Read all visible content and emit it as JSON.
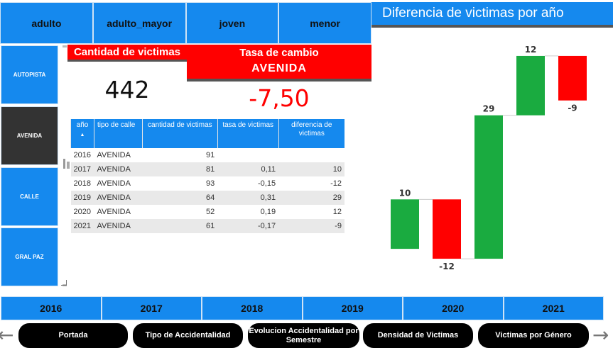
{
  "age_groups": [
    "adulto",
    "adulto_mayor",
    "joven",
    "menor"
  ],
  "street_types": [
    {
      "label": "AUTOPISTA",
      "selected": false
    },
    {
      "label": "AVENIDA",
      "selected": true
    },
    {
      "label": "CALLE",
      "selected": false
    },
    {
      "label": "GRAL PAZ",
      "selected": false
    }
  ],
  "victims_card": {
    "title": "Cantidad de victimas",
    "value": "442"
  },
  "rate_card": {
    "title": "Tasa de cambio",
    "street": "AVENIDA",
    "value": "-7,50"
  },
  "table": {
    "headers": {
      "year": "año",
      "type": "tipo de calle",
      "qty": "cantidad de victimas",
      "rate": "tasa de victimas",
      "diff": "diferencia de victimas"
    },
    "rows": [
      {
        "year": "2016",
        "type": "AVENIDA",
        "qty": "91",
        "rate": "",
        "diff": ""
      },
      {
        "year": "2017",
        "type": "AVENIDA",
        "qty": "81",
        "rate": "0,11",
        "diff": "10"
      },
      {
        "year": "2018",
        "type": "AVENIDA",
        "qty": "93",
        "rate": "-0,15",
        "diff": "-12"
      },
      {
        "year": "2019",
        "type": "AVENIDA",
        "qty": "64",
        "rate": "0,31",
        "diff": "29"
      },
      {
        "year": "2020",
        "type": "AVENIDA",
        "qty": "52",
        "rate": "0,19",
        "diff": "12"
      },
      {
        "year": "2021",
        "type": "AVENIDA",
        "qty": "61",
        "rate": "-0,17",
        "diff": "-9"
      }
    ]
  },
  "chart_title": "Diferencia de victimas por año",
  "chart_data": {
    "type": "bar",
    "subtype": "waterfall",
    "values": [
      10,
      -12,
      29,
      12,
      -9
    ],
    "labels": [
      "10",
      "-12",
      "29",
      "12",
      "-9"
    ],
    "increase_color": "#1aab40",
    "decrease_color": "#ff0000"
  },
  "years": [
    "2016",
    "2017",
    "2018",
    "2019",
    "2020",
    "2021"
  ],
  "nav": {
    "prev_icon": "arrow-left-icon",
    "next_icon": "arrow-right-icon",
    "pages": [
      "Portada",
      "Tipo de Accidentalidad",
      "Evolucion Accidentalidad por Semestre",
      "Densidad de Victimas",
      "Victimas por Género"
    ]
  }
}
